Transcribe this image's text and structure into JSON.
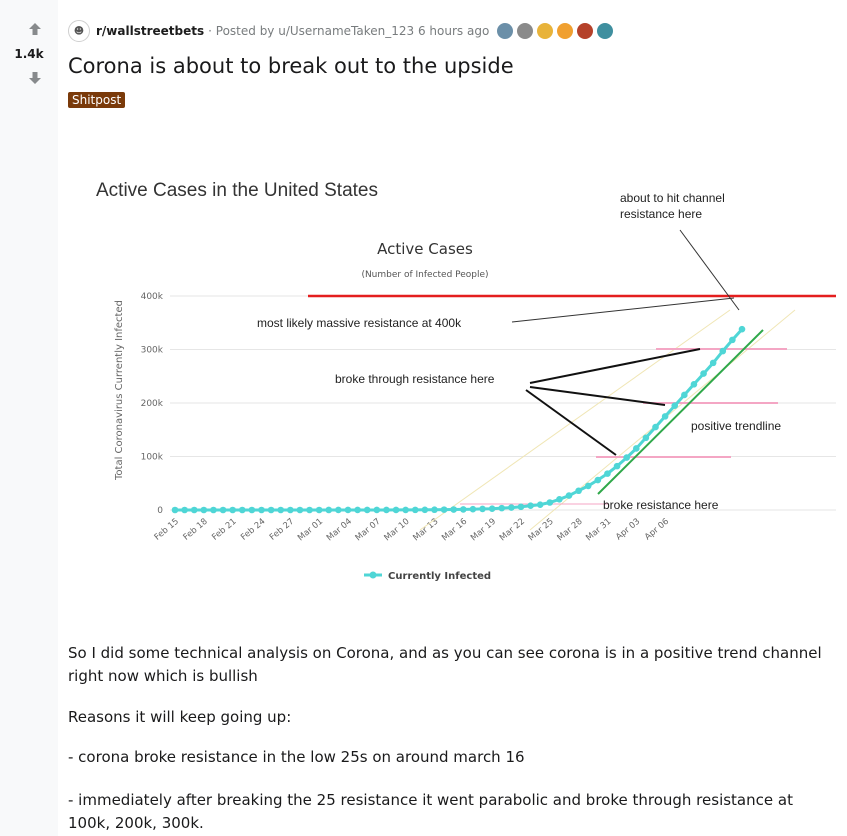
{
  "votes": {
    "count": "1.4k"
  },
  "header": {
    "subreddit": "r/wallstreetbets",
    "posted_by": "· Posted by u/UsernameTaken_123 6 hours ago",
    "award_colors": [
      "#6b8fa8",
      "#8a8a8a",
      "#e8b33a",
      "#f0a030",
      "#b5412a",
      "#3f8f9f"
    ]
  },
  "post": {
    "title": "Corona is about to break out to the upside",
    "flair": "Shitpost"
  },
  "image_text": {
    "heading": "Active Cases in the United States",
    "chart_title": "Active Cases",
    "chart_subtitle": "(Number of Infected People)",
    "y_label": "Total Coronavirus Currently Infected",
    "legend": "Currently Infected",
    "annotations": {
      "channel": "about to hit channel resistance here",
      "channel_line1": "about to hit channel",
      "channel_line2": "resistance here",
      "massive": "most likely massive resistance at 400k",
      "broke_through": "broke through resistance here",
      "trendline": "positive trendline",
      "broke_resistance": "broke resistance here"
    }
  },
  "chart_data": {
    "type": "line",
    "title": "Active Cases",
    "subtitle": "(Number of Infected People)",
    "xlabel": "",
    "ylabel": "Total Coronavirus Currently Infected",
    "ylim": [
      0,
      400000
    ],
    "y_ticks": [
      "0",
      "100k",
      "200k",
      "300k",
      "400k"
    ],
    "x_ticks": [
      "Feb 15",
      "Feb 18",
      "Feb 21",
      "Feb 24",
      "Feb 27",
      "Mar 01",
      "Mar 04",
      "Mar 07",
      "Mar 10",
      "Mar 13",
      "Mar 16",
      "Mar 19",
      "Mar 22",
      "Mar 25",
      "Mar 28",
      "Mar 31",
      "Apr 03",
      "Apr 06"
    ],
    "legend": "top-none, bottom-center",
    "series": [
      {
        "name": "Currently Infected",
        "color": "#4fd6d6",
        "values": [
          10,
          10,
          10,
          10,
          10,
          10,
          10,
          10,
          10,
          10,
          10,
          10,
          10,
          12,
          15,
          20,
          30,
          40,
          50,
          60,
          70,
          80,
          90,
          110,
          150,
          250,
          350,
          500,
          700,
          900,
          1100,
          1500,
          2000,
          2500,
          3500,
          4500,
          6000,
          8000,
          10000,
          14000,
          20000,
          27000,
          36000,
          45000,
          56000,
          68000,
          82000,
          98000,
          115000,
          135000,
          155000,
          175000,
          195000,
          215000,
          235000,
          255000,
          275000,
          297000,
          318000,
          338000
        ]
      }
    ]
  },
  "body": {
    "para1": "So I did some technical analysis on Corona, and as you can see corona is in a positive trend channel right now which is bullish",
    "para2": "Reasons it will keep going up:",
    "para3": "- corona broke resistance in the low 25s on around march 16",
    "para4": "- immediately after breaking the 25 resistance it went parabolic and broke through resistance at 100k, 200k, 300k."
  }
}
